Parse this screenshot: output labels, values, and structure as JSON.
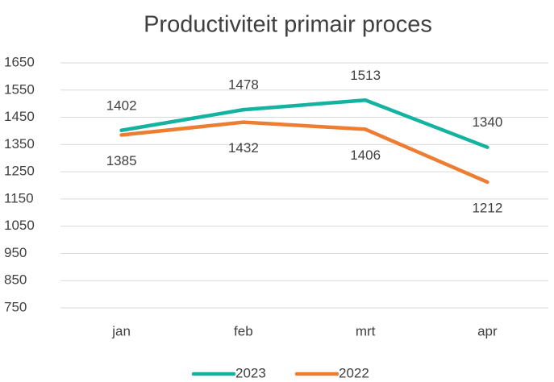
{
  "chart_data": {
    "type": "line",
    "title": "Productiviteit primair proces",
    "categories": [
      "jan",
      "feb",
      "mrt",
      "apr"
    ],
    "series": [
      {
        "name": "2023",
        "color": "#13b3a0",
        "values": [
          1402,
          1478,
          1513,
          1340
        ]
      },
      {
        "name": "2022",
        "color": "#ed7d31",
        "values": [
          1385,
          1432,
          1406,
          1212
        ]
      }
    ],
    "ylim": [
      750,
      1650
    ],
    "yticks": [
      750,
      850,
      950,
      1050,
      1150,
      1250,
      1350,
      1450,
      1550,
      1650
    ],
    "grid": true,
    "legend": "bottom"
  }
}
